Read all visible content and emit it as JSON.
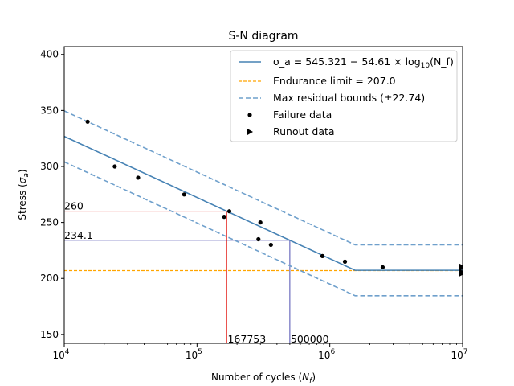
{
  "chart_data": {
    "type": "scatter",
    "title": "S-N diagram",
    "xlabel": "Number of cycles (N_f)",
    "ylabel": "Stress (σ_a)",
    "x_scale": "log",
    "xlim": [
      10000,
      10000000
    ],
    "ylim": [
      142,
      407
    ],
    "x_ticks": [
      {
        "value": 10000,
        "base": "10",
        "exp": "4"
      },
      {
        "value": 100000,
        "base": "10",
        "exp": "5"
      },
      {
        "value": 1000000,
        "base": "10",
        "exp": "6"
      },
      {
        "value": 10000000,
        "base": "10",
        "exp": "7"
      }
    ],
    "y_ticks": [
      150,
      200,
      250,
      300,
      350,
      400
    ],
    "grid": false,
    "legend_position": "top-right",
    "fit_line": {
      "name": "σ_a = 545.321 − 54.61 × log10(N_f)",
      "intercept": 545.321,
      "slope": -54.61,
      "knee_x": 1550000,
      "color": "#4682b4"
    },
    "endurance_limit": {
      "name": "Endurance limit = 207.0",
      "value": 207.0,
      "color": "#ffa500"
    },
    "residual_bounds": {
      "name": "Max residual bounds (±22.74)",
      "offset": 22.74,
      "color": "#6fa0cc"
    },
    "failure_data": {
      "name": "Failure data",
      "points": [
        [
          15000,
          340
        ],
        [
          24000,
          300
        ],
        [
          36000,
          290
        ],
        [
          80000,
          275
        ],
        [
          160000,
          255
        ],
        [
          175000,
          260
        ],
        [
          290000,
          235
        ],
        [
          300000,
          250
        ],
        [
          360000,
          230
        ],
        [
          880000,
          220
        ],
        [
          1300000,
          215
        ],
        [
          2500000,
          210
        ]
      ]
    },
    "runout_data": {
      "name": "Runout data",
      "points": [
        [
          10000000,
          210
        ],
        [
          10000000,
          205
        ]
      ]
    },
    "annotations": [
      {
        "label": "260",
        "stress": 260,
        "cycles": 167753,
        "cycles_label": "167753",
        "color": "#e8413c"
      },
      {
        "label": "234.1",
        "stress": 234.1,
        "cycles": 500000,
        "cycles_label": "500000",
        "color": "#3c3ca8"
      }
    ]
  },
  "legend": {
    "fit_label": "σ_a = 545.321 − 54.61 × log",
    "fit_label_sub": "10",
    "fit_label_tail": "(N_f)",
    "endurance_label": "Endurance limit = 207.0",
    "bounds_label": "Max residual bounds (±22.74)",
    "failure_label": "Failure data",
    "runout_label": "Runout data"
  },
  "labels": {
    "title": "S-N diagram",
    "xlabel_main": "Number of cycles (",
    "xlabel_var": "N",
    "xlabel_sub": "f",
    "xlabel_close": ")",
    "ylabel_main": "Stress (",
    "ylabel_var": "σ",
    "ylabel_sub": "a",
    "ylabel_close": ")"
  }
}
